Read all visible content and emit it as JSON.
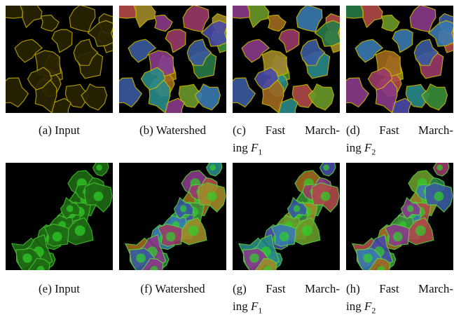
{
  "panels": [
    {
      "label": "(a)",
      "caption": "Input"
    },
    {
      "label": "(b)",
      "caption": "Watershed"
    },
    {
      "label": "(c)",
      "line1": "Fast March-",
      "line2": "ing",
      "math": "F",
      "sub": "1"
    },
    {
      "label": "(d)",
      "line1": "Fast March-",
      "line2": "ing",
      "math": "F",
      "sub": "2"
    },
    {
      "label": "(e)",
      "caption": "Input"
    },
    {
      "label": "(f)",
      "caption": "Watershed"
    },
    {
      "label": "(g)",
      "line1": "Fast March-",
      "line2": "ing",
      "math": "F",
      "sub": "1"
    },
    {
      "label": "(h)",
      "line1": "Fast March-",
      "line2": "ing",
      "math": "F",
      "sub": "2"
    }
  ]
}
